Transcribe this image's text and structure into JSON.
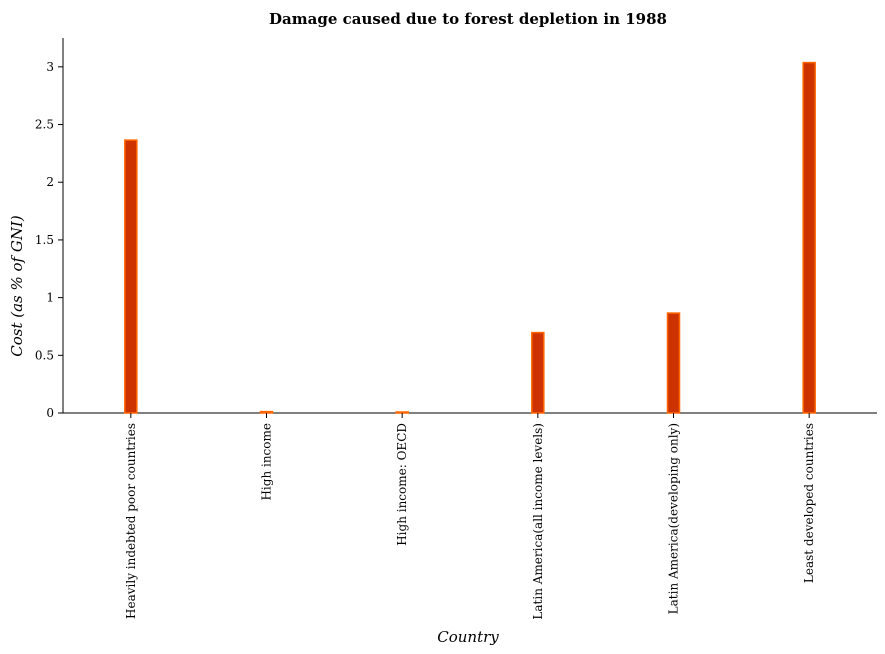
{
  "chart_data": {
    "type": "bar",
    "title": "Damage caused due to forest depletion in 1988",
    "xlabel": "Country",
    "ylabel": "Cost (as % of GNI)",
    "categories": [
      "Heavily indebted poor countries",
      "High income",
      "High income: OECD",
      "Latin America(all income levels)",
      "Latin America(developing only)",
      "Least developed countries"
    ],
    "values": [
      2.365,
      0.012,
      0.006,
      0.697,
      0.866,
      3.037
    ],
    "ylim": [
      0,
      3.25
    ],
    "yticks": [
      0,
      0.5,
      1,
      1.5,
      2,
      2.5,
      3
    ],
    "ytick_labels": [
      "0",
      "0.5",
      "1",
      "1.5",
      "2",
      "2.5",
      "3"
    ],
    "grid": false,
    "colors": {
      "bar_fill": "#cc3300",
      "bar_edge": "#ff6600",
      "axis": "#000000"
    }
  }
}
